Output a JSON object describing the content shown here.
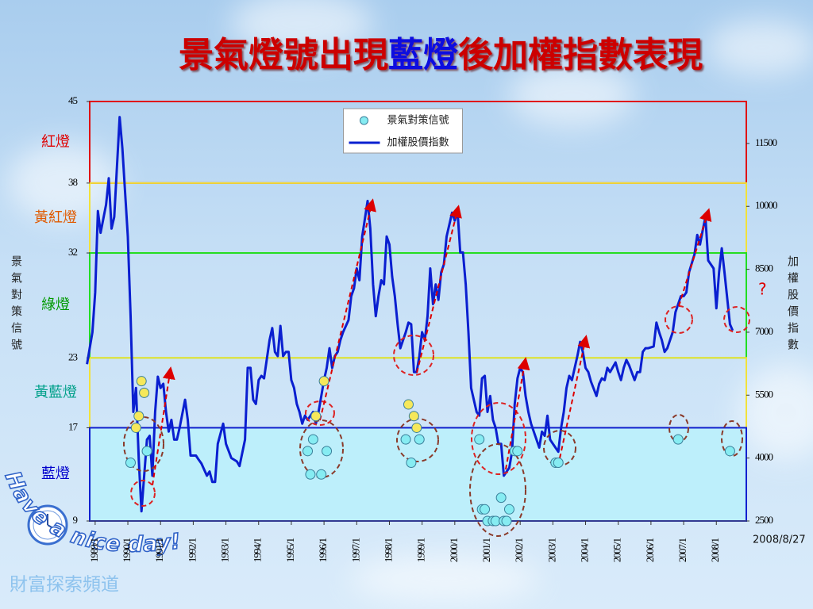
{
  "chart_data": {
    "type": "line",
    "title_parts": [
      "景氣燈號出現",
      "藍燈",
      "後加權指數表現"
    ],
    "title_colors": [
      "#cc0000",
      "#0a0adf",
      "#cc0000"
    ],
    "ylabel": "景氣對策信號",
    "y2label": "加權股價指數",
    "annotation": "?",
    "date_note": "2008/8/27",
    "watermark": "財富探索頻道",
    "greeting": "Have a nice day!",
    "legend": "top-center",
    "xlim": [
      "1988/11",
      "2008/12"
    ],
    "xticks": [
      "1989/1",
      "1990/1",
      "1991/1",
      "1992/1",
      "1993/1",
      "1994/1",
      "1995/1",
      "1996/1",
      "1997/1",
      "1998/1",
      "1999/1",
      "2000/1",
      "2001/1",
      "2002/1",
      "2003/1",
      "2004/1",
      "2005/1",
      "2006/1",
      "2007/1",
      "2008/1"
    ],
    "ylim": [
      9,
      45
    ],
    "yticks": [
      9,
      17,
      23,
      32,
      38,
      45
    ],
    "y2lim": [
      2500,
      12500
    ],
    "y2ticks": [
      2500,
      4000,
      5500,
      7000,
      8500,
      10000,
      11500
    ],
    "bands": [
      {
        "label": "紅燈",
        "from": 38,
        "to": 45,
        "color": "#e01010",
        "label_color": "#e00000"
      },
      {
        "label": "黃紅燈",
        "from": 32,
        "to": 38,
        "color": "#f2e23a",
        "label_color": "#e05a00"
      },
      {
        "label": "綠燈",
        "from": 23,
        "to": 32,
        "color": "#22dd22",
        "label_color": "#009a00"
      },
      {
        "label": "黃藍燈",
        "from": 17,
        "to": 23,
        "color": "#f2e23a",
        "label_color": "#00a08a",
        "dot_color": "#f6e85a"
      },
      {
        "label": "藍燈",
        "from": 9,
        "to": 17,
        "color": "#1020d0",
        "label_color": "#0000cc",
        "fill": "#bdeffb"
      }
    ],
    "series": [
      {
        "name": "景氣對策信號",
        "type": "scatter",
        "color": "#86ecf2",
        "x": [
          "1990/2",
          "1990/4",
          "1990/5",
          "1990/6",
          "1990/7",
          "1990/8",
          "1995/7",
          "1995/8",
          "1995/9",
          "1995/10",
          "1995/12",
          "1996/1",
          "1996/2",
          "1998/7",
          "1998/8",
          "1998/9",
          "1998/10",
          "1998/11",
          "1998/12",
          "2000/10",
          "2000/11",
          "2000/12",
          "2001/1",
          "2001/3",
          "2001/4",
          "2001/6",
          "2001/7",
          "2001/8",
          "2001/9",
          "2001/11",
          "2001/12",
          "2003/2",
          "2003/3",
          "2006/11",
          "2008/6"
        ],
        "values": [
          14,
          17,
          18,
          21,
          20,
          15,
          15,
          13,
          16,
          18,
          13,
          21,
          15,
          16,
          19,
          14,
          18,
          17,
          16,
          16,
          10,
          10,
          9,
          9,
          9,
          11,
          9,
          9,
          10,
          15,
          15,
          14,
          14,
          16,
          15
        ]
      },
      {
        "name": "加權股價指數",
        "axis": "y2",
        "color": "#0a1fd0",
        "x": [
          "1988/10",
          "1988/12",
          "1989/1",
          "1989/2",
          "1989/3",
          "1989/5",
          "1989/6",
          "1989/7",
          "1989/8",
          "1989/10",
          "1989/11",
          "1990/1",
          "1990/2",
          "1990/3",
          "1990/4",
          "1990/5",
          "1990/6",
          "1990/7",
          "1990/8",
          "1990/9",
          "1990/10",
          "1990/11",
          "1990/12",
          "1991/1",
          "1991/2",
          "1991/3",
          "1991/4",
          "1991/5",
          "1991/6",
          "1991/7",
          "1991/8",
          "1991/10",
          "1991/11",
          "1991/12",
          "1992/2",
          "1992/3",
          "1992/4",
          "1992/6",
          "1992/7",
          "1992/8",
          "1992/9",
          "1992/10",
          "1992/12",
          "1993/1",
          "1993/3",
          "1993/5",
          "1993/6",
          "1993/8",
          "1993/9",
          "1993/10",
          "1993/11",
          "1993/12",
          "1994/1",
          "1994/2",
          "1994/3",
          "1994/5",
          "1994/6",
          "1994/7",
          "1994/8",
          "1994/9",
          "1994/10",
          "1994/11",
          "1994/12",
          "1995/1",
          "1995/2",
          "1995/3",
          "1995/4",
          "1995/5",
          "1995/6",
          "1995/7",
          "1995/9",
          "1995/10",
          "1995/11",
          "1995/12",
          "1996/1",
          "1996/2",
          "1996/3",
          "1996/4",
          "1996/5",
          "1996/6",
          "1996/7",
          "1996/8",
          "1996/10",
          "1996/11",
          "1996/12",
          "1997/1",
          "1997/2",
          "1997/3",
          "1997/5",
          "1997/6",
          "1997/7",
          "1997/8",
          "1997/9",
          "1997/10",
          "1997/11",
          "1997/12",
          "1998/1",
          "1998/2",
          "1998/3",
          "1998/4",
          "1998/5",
          "1998/7",
          "1998/8",
          "1998/9",
          "1998/10",
          "1998/11",
          "1998/12",
          "1999/1",
          "1999/2",
          "1999/3",
          "1999/4",
          "1999/5",
          "1999/6",
          "1999/7",
          "1999/8",
          "1999/9",
          "1999/10",
          "1999/12",
          "2000/1",
          "2000/2",
          "2000/3",
          "2000/4",
          "2000/5",
          "2000/6",
          "2000/7",
          "2000/9",
          "2000/10",
          "2000/11",
          "2000/12",
          "2001/1",
          "2001/2",
          "2001/3",
          "2001/4",
          "2001/5",
          "2001/6",
          "2001/7",
          "2001/9",
          "2001/10",
          "2001/11",
          "2001/12",
          "2002/1",
          "2002/2",
          "2002/3",
          "2002/4",
          "2002/5",
          "2002/6",
          "2002/8",
          "2002/9",
          "2002/10",
          "2002/11",
          "2002/12",
          "2003/1",
          "2003/3",
          "2003/4",
          "2003/5",
          "2003/6",
          "2003/7",
          "2003/8",
          "2003/10",
          "2003/11",
          "2003/12",
          "2004/1",
          "2004/2",
          "2004/3",
          "2004/5",
          "2004/6",
          "2004/7",
          "2004/8",
          "2004/9",
          "2004/10",
          "2004/12",
          "2005/1",
          "2005/2",
          "2005/3",
          "2005/4",
          "2005/5",
          "2005/7",
          "2005/8",
          "2005/9",
          "2005/10",
          "2005/11",
          "2005/12",
          "2006/2",
          "2006/3",
          "2006/4",
          "2006/5",
          "2006/6",
          "2006/7",
          "2006/9",
          "2006/10",
          "2006/11",
          "2006/12",
          "2007/1",
          "2007/2",
          "2007/3",
          "2007/5",
          "2007/6",
          "2007/7",
          "2007/8",
          "2007/9",
          "2007/10",
          "2007/12",
          "2008/1",
          "2008/2",
          "2008/3",
          "2008/4",
          "2008/6",
          "2008/7"
        ],
        "values": [
          6240,
          7000,
          7950,
          9890,
          9370,
          10040,
          10670,
          9470,
          9750,
          12130,
          11370,
          9280,
          7380,
          5100,
          5670,
          3960,
          2730,
          3580,
          4440,
          4530,
          3580,
          5100,
          5940,
          5670,
          5770,
          5100,
          4630,
          4910,
          4440,
          4440,
          4720,
          5390,
          4910,
          4060,
          4060,
          3960,
          3870,
          3580,
          3680,
          3430,
          3430,
          4340,
          4820,
          4340,
          4000,
          3920,
          3810,
          4440,
          6150,
          6150,
          5390,
          5290,
          5860,
          5960,
          5900,
          6810,
          7100,
          6530,
          6430,
          7150,
          6430,
          6530,
          6530,
          5860,
          5670,
          5290,
          5100,
          4820,
          5010,
          4910,
          5100,
          4820,
          5100,
          5480,
          5860,
          6150,
          6620,
          6150,
          6430,
          6530,
          6810,
          7000,
          7290,
          7860,
          8050,
          8520,
          8240,
          9280,
          10130,
          9470,
          8140,
          7380,
          7860,
          8240,
          8140,
          9280,
          9090,
          8330,
          7860,
          7190,
          6620,
          7000,
          7230,
          7190,
          6050,
          6050,
          6430,
          7000,
          6810,
          7380,
          8520,
          7670,
          8140,
          7770,
          8430,
          8620,
          9280,
          9850,
          9660,
          9890,
          8900,
          8900,
          8140,
          7000,
          5670,
          5100,
          5010,
          5900,
          5960,
          5100,
          5480,
          4910,
          4720,
          4340,
          4340,
          3580,
          3770,
          4150,
          5290,
          5900,
          6150,
          6050,
          5480,
          5100,
          4820,
          4630,
          4250,
          4630,
          4530,
          5010,
          4440,
          4340,
          4150,
          4720,
          5100,
          5670,
          5960,
          5860,
          6430,
          6770,
          6530,
          6150,
          6050,
          5820,
          5480,
          5770,
          5900,
          5860,
          6150,
          6050,
          6280,
          6050,
          5860,
          6150,
          6340,
          6210,
          5860,
          6050,
          6050,
          6530,
          6620,
          6620,
          6660,
          7230,
          7000,
          6810,
          6530,
          6620,
          7000,
          7480,
          7670,
          7860,
          7860,
          7950,
          8430,
          8860,
          9320,
          9090,
          9430,
          9750,
          8710,
          8520,
          7570,
          8430,
          9000,
          8430,
          7190,
          7040
        ]
      }
    ]
  }
}
